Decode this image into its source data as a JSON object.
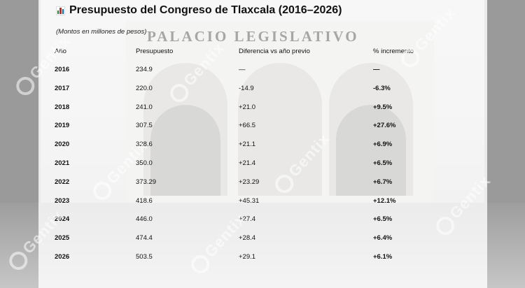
{
  "title": "Presupuesto del Congreso de Tlaxcala (2016–2026)",
  "subtitle": "(Montos en millones de pesos)",
  "building_sign": "PALACIO LEGISLATIVO",
  "watermark": "Gentix",
  "icon": "bar-chart-icon",
  "chart_data": {
    "type": "table",
    "title": "Presupuesto del Congreso de Tlaxcala (2016–2026)",
    "subtitle": "(Montos en millones de pesos)",
    "columns": [
      "Año",
      "Presupuesto",
      "Diferencia vs año previo",
      "% incremento"
    ],
    "rows": [
      [
        "2016",
        "234.9",
        "—",
        "—"
      ],
      [
        "2017",
        "220.0",
        "-14.9",
        "-6.3%"
      ],
      [
        "2018",
        "241.0",
        "+21.0",
        "+9.5%"
      ],
      [
        "2019",
        "307.5",
        "+66.5",
        "+27.6%"
      ],
      [
        "2020",
        "328.6",
        "+21.1",
        "+6.9%"
      ],
      [
        "2021",
        "350.0",
        "+21.4",
        "+6.5%"
      ],
      [
        "2022",
        "373.29",
        "+23.29",
        "+6.7%"
      ],
      [
        "2023",
        "418.6",
        "+45.31",
        "+12.1%"
      ],
      [
        "2024",
        "446.0",
        "+27.4",
        "+6.5%"
      ],
      [
        "2025",
        "474.4",
        "+28.4",
        "+6.4%"
      ],
      [
        "2026",
        "503.5",
        "+29.1",
        "+6.1%"
      ]
    ]
  }
}
